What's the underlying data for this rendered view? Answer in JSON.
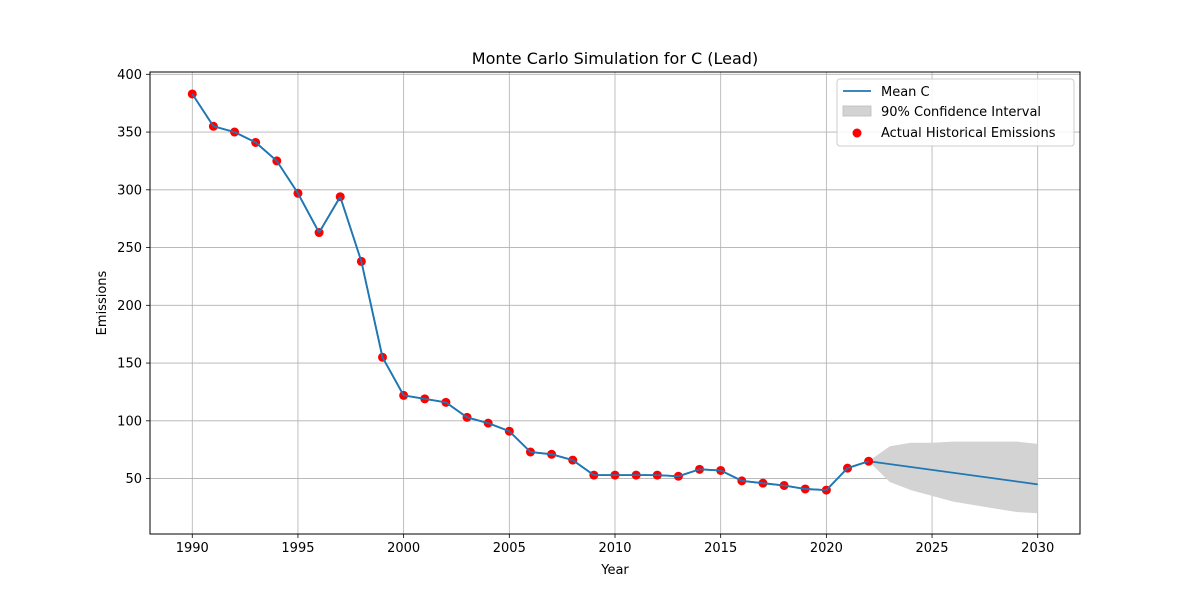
{
  "chart_data": {
    "type": "line",
    "title": "Monte Carlo Simulation for C (Lead)",
    "xlabel": "Year",
    "ylabel": "Emissions",
    "xlim": [
      1988,
      2032
    ],
    "ylim": [
      2,
      402
    ],
    "xticks": [
      1990,
      1995,
      2000,
      2005,
      2010,
      2015,
      2020,
      2025,
      2030
    ],
    "yticks": [
      50,
      100,
      150,
      200,
      250,
      300,
      350,
      400
    ],
    "grid": true,
    "legend_position": "top-right",
    "legend": {
      "mean": "Mean C",
      "ci": "90% Confidence Interval",
      "actual": "Actual Historical Emissions"
    },
    "colors": {
      "mean": "#1f77b4",
      "ci_fill": "#d3d3d3",
      "actual": "#ff0000"
    },
    "actual_historical": {
      "x": [
        1990,
        1991,
        1992,
        1993,
        1994,
        1995,
        1996,
        1997,
        1998,
        1999,
        2000,
        2001,
        2002,
        2003,
        2004,
        2005,
        2006,
        2007,
        2008,
        2009,
        2010,
        2011,
        2012,
        2013,
        2014,
        2015,
        2016,
        2017,
        2018,
        2019,
        2020,
        2021,
        2022
      ],
      "y": [
        383,
        355,
        350,
        341,
        325,
        297,
        263,
        294,
        238,
        155,
        122,
        119,
        116,
        103,
        98,
        91,
        73,
        71,
        66,
        53,
        53,
        53,
        53,
        52,
        58,
        57,
        48,
        46,
        44,
        41,
        40,
        59,
        65
      ]
    },
    "mean": {
      "x": [
        1990,
        1991,
        1992,
        1993,
        1994,
        1995,
        1996,
        1997,
        1998,
        1999,
        2000,
        2001,
        2002,
        2003,
        2004,
        2005,
        2006,
        2007,
        2008,
        2009,
        2010,
        2011,
        2012,
        2013,
        2014,
        2015,
        2016,
        2017,
        2018,
        2019,
        2020,
        2021,
        2022,
        2030
      ],
      "y": [
        383,
        355,
        350,
        341,
        325,
        297,
        263,
        294,
        238,
        155,
        122,
        119,
        116,
        103,
        98,
        91,
        73,
        71,
        66,
        53,
        53,
        53,
        53,
        52,
        58,
        57,
        48,
        46,
        44,
        41,
        40,
        59,
        65,
        45
      ]
    },
    "confidence_interval": {
      "x": [
        2022,
        2023,
        2024,
        2025,
        2026,
        2027,
        2028,
        2029,
        2030
      ],
      "upper": [
        65,
        78,
        81,
        81,
        82,
        82,
        82,
        82,
        80
      ],
      "lower": [
        65,
        47,
        40,
        35,
        30,
        27,
        24,
        21,
        20
      ]
    }
  }
}
